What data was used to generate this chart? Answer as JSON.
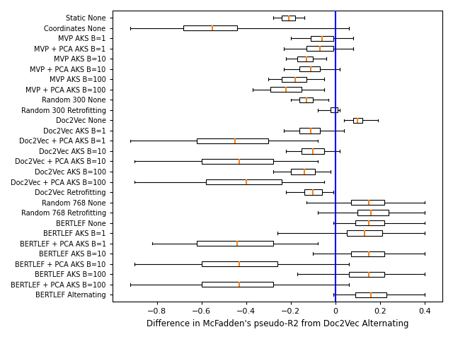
{
  "labels": [
    "Static None",
    "Coordinates None",
    "MVP AKS B=1",
    "MVP + PCA AKS B=1",
    "MVP AKS B=10",
    "MVP + PCA AKS B=10",
    "MVP AKS B=100",
    "MVP + PCA AKS B=100",
    "Random 300 None",
    "Random 300 Retrofitting",
    "Doc2Vec None",
    "Doc2Vec AKS B=1",
    "Doc2Vec + PCA AKS B=1",
    "Doc2Vec AKS B=10",
    "Doc2Vec + PCA AKS B=10",
    "Doc2Vec AKS B=100",
    "Doc2Vec + PCA AKS B=100",
    "Doc2Vec Retrofitting",
    "Random 768 None",
    "Random 768 Retrofitting",
    "BERTLEF None",
    "BERTLEF AKS B=1",
    "BERTLEF + PCA AKS B=1",
    "BERTLEF AKS B=10",
    "BERTLEF + PCA AKS B=10",
    "BERTLEF AKS B=100",
    "BERTLEF + PCA AKS B=100",
    "BERTLEF Alternating"
  ],
  "boxes": [
    {
      "whislo": -0.28,
      "q1": -0.24,
      "med": -0.21,
      "q3": -0.18,
      "whishi": -0.14
    },
    {
      "whislo": -0.92,
      "q1": -0.68,
      "med": -0.55,
      "q3": -0.44,
      "whishi": 0.06
    },
    {
      "whislo": -0.2,
      "q1": -0.11,
      "med": -0.06,
      "q3": -0.01,
      "whishi": 0.08
    },
    {
      "whislo": -0.23,
      "q1": -0.13,
      "med": -0.07,
      "q3": -0.01,
      "whishi": 0.08
    },
    {
      "whislo": -0.22,
      "q1": -0.17,
      "med": -0.13,
      "q3": -0.1,
      "whishi": -0.04
    },
    {
      "whislo": -0.23,
      "q1": -0.16,
      "med": -0.11,
      "q3": -0.07,
      "whishi": 0.02
    },
    {
      "whislo": -0.3,
      "q1": -0.24,
      "med": -0.18,
      "q3": -0.13,
      "whishi": -0.05
    },
    {
      "whislo": -0.37,
      "q1": -0.29,
      "med": -0.22,
      "q3": -0.15,
      "whishi": -0.05
    },
    {
      "whislo": -0.2,
      "q1": -0.16,
      "med": -0.13,
      "q3": -0.1,
      "whishi": -0.03
    },
    {
      "whislo": -0.08,
      "q1": -0.02,
      "med": 0.0,
      "q3": 0.01,
      "whishi": 0.02
    },
    {
      "whislo": 0.04,
      "q1": 0.08,
      "med": 0.1,
      "q3": 0.12,
      "whishi": 0.19
    },
    {
      "whislo": -0.23,
      "q1": -0.16,
      "med": -0.11,
      "q3": -0.07,
      "whishi": 0.04
    },
    {
      "whislo": -0.92,
      "q1": -0.62,
      "med": -0.45,
      "q3": -0.3,
      "whishi": -0.08
    },
    {
      "whislo": -0.22,
      "q1": -0.15,
      "med": -0.1,
      "q3": -0.05,
      "whishi": 0.02
    },
    {
      "whislo": -0.9,
      "q1": -0.6,
      "med": -0.43,
      "q3": -0.28,
      "whishi": -0.08
    },
    {
      "whislo": -0.28,
      "q1": -0.2,
      "med": -0.14,
      "q3": -0.09,
      "whishi": -0.02
    },
    {
      "whislo": -0.9,
      "q1": -0.58,
      "med": -0.4,
      "q3": -0.24,
      "whishi": -0.05
    },
    {
      "whislo": -0.22,
      "q1": -0.14,
      "med": -0.1,
      "q3": -0.06,
      "whishi": -0.01
    },
    {
      "whislo": -0.13,
      "q1": 0.07,
      "med": 0.15,
      "q3": 0.22,
      "whishi": 0.4
    },
    {
      "whislo": -0.08,
      "q1": 0.1,
      "med": 0.16,
      "q3": 0.24,
      "whishi": 0.4
    },
    {
      "whislo": -0.01,
      "q1": 0.09,
      "med": 0.15,
      "q3": 0.22,
      "whishi": 0.4
    },
    {
      "whislo": -0.26,
      "q1": 0.05,
      "med": 0.13,
      "q3": 0.21,
      "whishi": 0.4
    },
    {
      "whislo": -0.82,
      "q1": -0.62,
      "med": -0.44,
      "q3": -0.28,
      "whishi": -0.08
    },
    {
      "whislo": -0.1,
      "q1": 0.07,
      "med": 0.15,
      "q3": 0.22,
      "whishi": 0.4
    },
    {
      "whislo": -0.9,
      "q1": -0.6,
      "med": -0.43,
      "q3": -0.26,
      "whishi": 0.06
    },
    {
      "whislo": -0.17,
      "q1": 0.06,
      "med": 0.15,
      "q3": 0.22,
      "whishi": 0.4
    },
    {
      "whislo": -0.92,
      "q1": -0.6,
      "med": -0.43,
      "q3": -0.28,
      "whishi": 0.06
    },
    {
      "whislo": -0.01,
      "q1": 0.09,
      "med": 0.16,
      "q3": 0.23,
      "whishi": 0.4
    }
  ],
  "xlabel": "Difference in McFadden's pseudo-R2 from Doc2Vec Alternating",
  "xlim": [
    -1.0,
    0.48
  ],
  "xticks": [
    -0.8,
    -0.6,
    -0.4,
    -0.2,
    0.0,
    0.2,
    0.4
  ],
  "xticklabels": [
    "−0.8",
    "−0.6",
    "−0.4",
    "−0.2",
    "0",
    "0.2",
    "0.4"
  ],
  "vline_x": 0.0,
  "median_color": "#ff7f0e",
  "vline_color": "blue",
  "figsize": [
    6.4,
    4.8
  ],
  "dpi": 100,
  "fontsize_labels": 7.0,
  "fontsize_xlabel": 8.5,
  "fontsize_xticks": 8.0
}
